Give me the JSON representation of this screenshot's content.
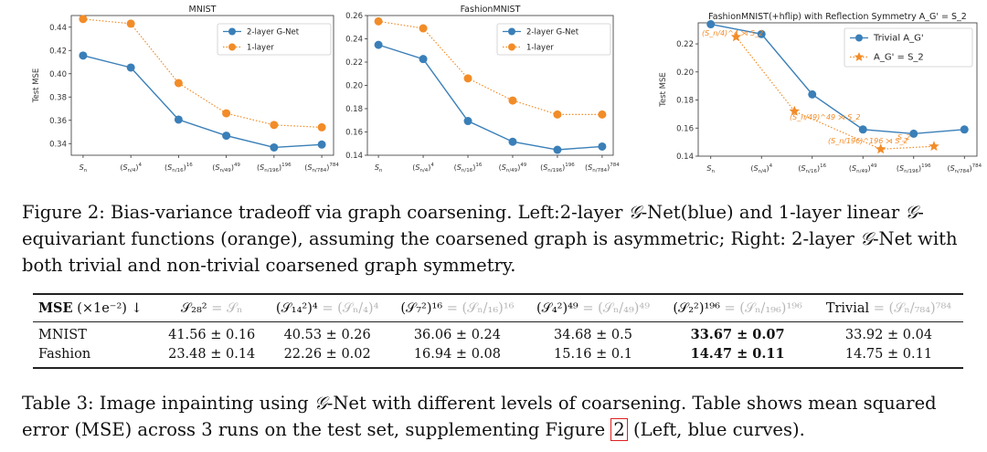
{
  "chart_data": [
    {
      "type": "line",
      "title": "MNIST",
      "ylabel": "Test MSE",
      "categories": [
        "S_n",
        "(S_n/4)^4",
        "(S_n/16)^16",
        "(S_n/49)^49",
        "(S_n/196)^196",
        "(S_n/784)^784"
      ],
      "ylim": [
        0.33,
        0.45
      ],
      "yticks": [
        0.34,
        0.36,
        0.38,
        0.4,
        0.42,
        0.44
      ],
      "legend_position": "upper right",
      "grid": false,
      "series": [
        {
          "name": "2-layer G-Net",
          "color": "#3a7fb8",
          "style": "solid",
          "values": [
            0.4156,
            0.4053,
            0.3606,
            0.3468,
            0.3367,
            0.3392
          ]
        },
        {
          "name": "1-layer",
          "color": "#f28c28",
          "style": "dotted",
          "values": [
            0.447,
            0.443,
            0.392,
            0.366,
            0.356,
            0.354
          ]
        }
      ]
    },
    {
      "type": "line",
      "title": "FashionMNIST",
      "ylabel": "",
      "categories": [
        "S_n",
        "(S_n/4)^4",
        "(S_n/16)^16",
        "(S_n/49)^49",
        "(S_n/196)^196",
        "(S_n/784)^784"
      ],
      "ylim": [
        0.14,
        0.26
      ],
      "yticks": [
        0.14,
        0.16,
        0.18,
        0.2,
        0.22,
        0.24,
        0.26
      ],
      "legend_position": "upper right",
      "grid": false,
      "series": [
        {
          "name": "2-layer G-Net",
          "color": "#3a7fb8",
          "style": "solid",
          "values": [
            0.2348,
            0.2226,
            0.1694,
            0.1516,
            0.1447,
            0.1475
          ]
        },
        {
          "name": "1-layer",
          "color": "#f28c28",
          "style": "dotted",
          "values": [
            0.255,
            0.249,
            0.206,
            0.187,
            0.175,
            0.175
          ]
        }
      ]
    },
    {
      "type": "line",
      "title": "FashionMNIST(+hflip) with Reflection Symmetry A_G' = S_2",
      "ylabel": "Test MSE",
      "categories": [
        "S_n",
        "(S_n/4)^4",
        "(S_n/16)^16",
        "(S_n/49)^49",
        "(S_n/196)^196",
        "(S_n/784)^784"
      ],
      "ylim": [
        0.14,
        0.235
      ],
      "yticks": [
        0.14,
        0.16,
        0.18,
        0.2,
        0.22
      ],
      "legend_position": "upper right",
      "grid": false,
      "series": [
        {
          "name": "Trivial A_G'",
          "color": "#3a7fb8",
          "style": "solid",
          "marker": "circle",
          "x": [
            0,
            1,
            2,
            3,
            4,
            5
          ],
          "values": [
            0.234,
            0.227,
            0.184,
            0.159,
            0.156,
            0.159
          ]
        },
        {
          "name": "A_G' = S_2",
          "color": "#f28c28",
          "style": "dotted",
          "marker": "star",
          "x": [
            0.5,
            1.65,
            3.35,
            4.4
          ],
          "values": [
            0.225,
            0.172,
            0.145,
            0.147
          ]
        }
      ],
      "annotations": [
        "(S_n/4)^4 ⋊ S_2",
        "(S_n/49)^49 ⋊ S_2",
        "(S_n/196)^196 ⋊ S_2",
        "S_2"
      ]
    }
  ],
  "figure_caption": {
    "p1": "Figure 2: Bias-variance tradeoff via graph coarsening. Left:2-layer ",
    "g": "𝒢",
    "p2": "-Net(blue) and 1-layer linear ",
    "p3": "-equivariant functions (orange), assuming the coarsened graph is asymmetric; Right: 2-layer ",
    "p4": "-Net with both trivial and non-trivial coarsened graph symmetry."
  },
  "table": {
    "header_first": "MSE",
    "header_first_scale": "(×1e⁻²) ↓",
    "columns": [
      {
        "main": "𝒮₂₈²",
        "alt": "= 𝒮ₙ"
      },
      {
        "main": "(𝒮₁₄²)⁴",
        "alt": "= (𝒮ₙ/₄)⁴"
      },
      {
        "main": "(𝒮₇²)¹⁶",
        "alt": "= (𝒮ₙ/₁₆)¹⁶"
      },
      {
        "main": "(𝒮₄²)⁴⁹",
        "alt": "= (𝒮ₙ/₄₉)⁴⁹"
      },
      {
        "main": "(𝒮₂²)¹⁹⁶",
        "alt": "= (𝒮ₙ/₁₉₆)¹⁹⁶"
      },
      {
        "main": "Trivial",
        "alt": "= (𝒮ₙ/₇₈₄)⁷⁸⁴"
      }
    ],
    "rows": [
      {
        "label": "MNIST",
        "cells": [
          "41.56 ± 0.16",
          "40.53 ± 0.26",
          "36.06 ± 0.24",
          "34.68 ± 0.5",
          "33.67 ± 0.07",
          "33.92 ± 0.04"
        ]
      },
      {
        "label": "Fashion",
        "cells": [
          "23.48 ± 0.14",
          "22.26 ± 0.02",
          "16.94 ± 0.08",
          "15.16 ± 0.1",
          "14.47 ± 0.11",
          "14.75 ± 0.11"
        ]
      }
    ],
    "bold_column_index": 4
  },
  "table_caption": {
    "p1": "Table 3: Image inpainting using ",
    "g": "𝒢",
    "p2": "-Net with different levels of coarsening. Table shows mean squared error (MSE) across 3 runs on the test set, supplementing Figure ",
    "ref": "2",
    "p3": " (Left, blue curves)."
  }
}
